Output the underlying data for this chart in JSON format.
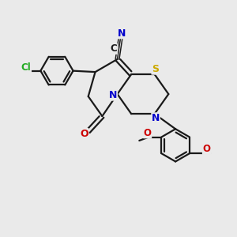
{
  "bg_color": "#eaeaea",
  "bond_color": "#1a1a1a",
  "bond_width": 1.6,
  "atom_colors": {
    "C": "#1a1a1a",
    "N": "#0000cc",
    "S": "#ccaa00",
    "O": "#cc0000",
    "Cl": "#22aa22"
  },
  "font_size": 8.5,
  "fig_size": [
    3.0,
    3.0
  ],
  "dpi": 100,
  "xlim": [
    0,
    10
  ],
  "ylim": [
    0,
    10
  ]
}
